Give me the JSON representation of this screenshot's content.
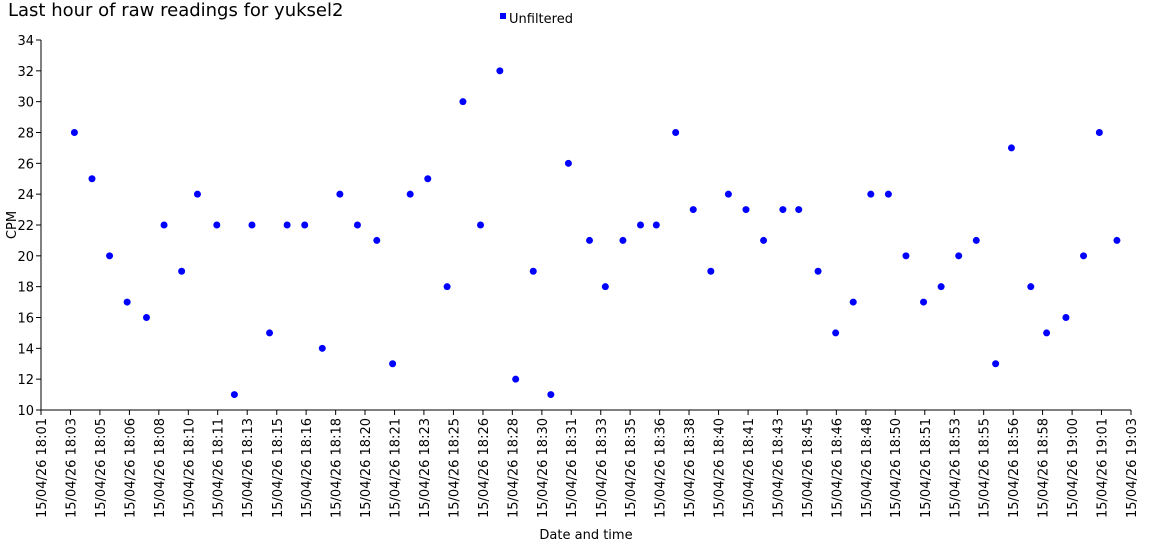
{
  "chart_data": {
    "type": "scatter",
    "title": "Last hour of raw readings for yuksel2",
    "x_label": "Date and time",
    "y_label": "CPM",
    "legend": "top",
    "series": [
      {
        "name": "Unfiltered",
        "color": "#0000ff",
        "x": [
          1082.9,
          1083.9,
          1084.9,
          1085.9,
          1087.0,
          1088.0,
          1089.0,
          1089.9,
          1091.0,
          1092.0,
          1093.0,
          1094.0,
          1095.0,
          1096.0,
          1097.0,
          1098.0,
          1099.0,
          1100.1,
          1101.0,
          1102.0,
          1103.0,
          1104.1,
          1105.0,
          1106.0,
          1107.1,
          1108.0,
          1109.0,
          1110.0,
          1111.0,
          1112.2,
          1113.1,
          1114.1,
          1115.1,
          1116.0,
          1117.1,
          1118.1,
          1119.1,
          1120.1,
          1121.1,
          1122.1,
          1123.2,
          1124.1,
          1125.2,
          1126.2,
          1127.2,
          1128.2,
          1129.2,
          1130.2,
          1131.2,
          1132.2,
          1133.2,
          1134.2,
          1135.3,
          1136.2,
          1137.3,
          1138.2,
          1139.3,
          1140.3,
          1141.2,
          1142.2
        ],
        "values": [
          28,
          25,
          20,
          17,
          16,
          22,
          19,
          24,
          22,
          11,
          22,
          15,
          22,
          22,
          14,
          24,
          22,
          21,
          13,
          24,
          25,
          18,
          30,
          22,
          32,
          12,
          19,
          11,
          26,
          21,
          18,
          21,
          22,
          22,
          28,
          23,
          19,
          24,
          23,
          21,
          23,
          23,
          19,
          15,
          17,
          24,
          24,
          20,
          17,
          18,
          20,
          21,
          13,
          27,
          18,
          15,
          16,
          20,
          28,
          21
        ]
      }
    ],
    "xlim": [
      1081,
      1143
    ],
    "xticks": [
      {
        "value": 1081,
        "label": "15/04/26 18:01"
      },
      {
        "value": 1082.68,
        "label": "15/04/26 18:03"
      },
      {
        "value": 1084.35,
        "label": "15/04/26 18:05"
      },
      {
        "value": 1086.03,
        "label": "15/04/26 18:06"
      },
      {
        "value": 1087.7,
        "label": "15/04/26 18:08"
      },
      {
        "value": 1089.38,
        "label": "15/04/26 18:10"
      },
      {
        "value": 1091.05,
        "label": "15/04/26 18:11"
      },
      {
        "value": 1092.73,
        "label": "15/04/26 18:13"
      },
      {
        "value": 1094.41,
        "label": "15/04/26 18:15"
      },
      {
        "value": 1096.08,
        "label": "15/04/26 18:16"
      },
      {
        "value": 1097.76,
        "label": "15/04/26 18:18"
      },
      {
        "value": 1099.43,
        "label": "15/04/26 18:20"
      },
      {
        "value": 1101.11,
        "label": "15/04/26 18:21"
      },
      {
        "value": 1102.78,
        "label": "15/04/26 18:23"
      },
      {
        "value": 1104.46,
        "label": "15/04/26 18:25"
      },
      {
        "value": 1106.14,
        "label": "15/04/26 18:26"
      },
      {
        "value": 1107.81,
        "label": "15/04/26 18:28"
      },
      {
        "value": 1109.49,
        "label": "15/04/26 18:30"
      },
      {
        "value": 1111.16,
        "label": "15/04/26 18:31"
      },
      {
        "value": 1112.84,
        "label": "15/04/26 18:33"
      },
      {
        "value": 1114.51,
        "label": "15/04/26 18:35"
      },
      {
        "value": 1116.19,
        "label": "15/04/26 18:36"
      },
      {
        "value": 1117.86,
        "label": "15/04/26 18:38"
      },
      {
        "value": 1119.54,
        "label": "15/04/26 18:40"
      },
      {
        "value": 1121.22,
        "label": "15/04/26 18:41"
      },
      {
        "value": 1122.89,
        "label": "15/04/26 18:43"
      },
      {
        "value": 1124.57,
        "label": "15/04/26 18:45"
      },
      {
        "value": 1126.24,
        "label": "15/04/26 18:46"
      },
      {
        "value": 1127.92,
        "label": "15/04/26 18:48"
      },
      {
        "value": 1129.59,
        "label": "15/04/26 18:50"
      },
      {
        "value": 1131.27,
        "label": "15/04/26 18:51"
      },
      {
        "value": 1132.95,
        "label": "15/04/26 18:53"
      },
      {
        "value": 1134.62,
        "label": "15/04/26 18:55"
      },
      {
        "value": 1136.3,
        "label": "15/04/26 18:56"
      },
      {
        "value": 1137.97,
        "label": "15/04/26 18:58"
      },
      {
        "value": 1139.65,
        "label": "15/04/26 19:00"
      },
      {
        "value": 1141.32,
        "label": "15/04/26 19:01"
      },
      {
        "value": 1143,
        "label": "15/04/26 19:03"
      }
    ],
    "ylim": [
      10,
      34
    ],
    "yticks": [
      10,
      12,
      14,
      16,
      18,
      20,
      22,
      24,
      26,
      28,
      30,
      32,
      34
    ],
    "grid": false
  }
}
